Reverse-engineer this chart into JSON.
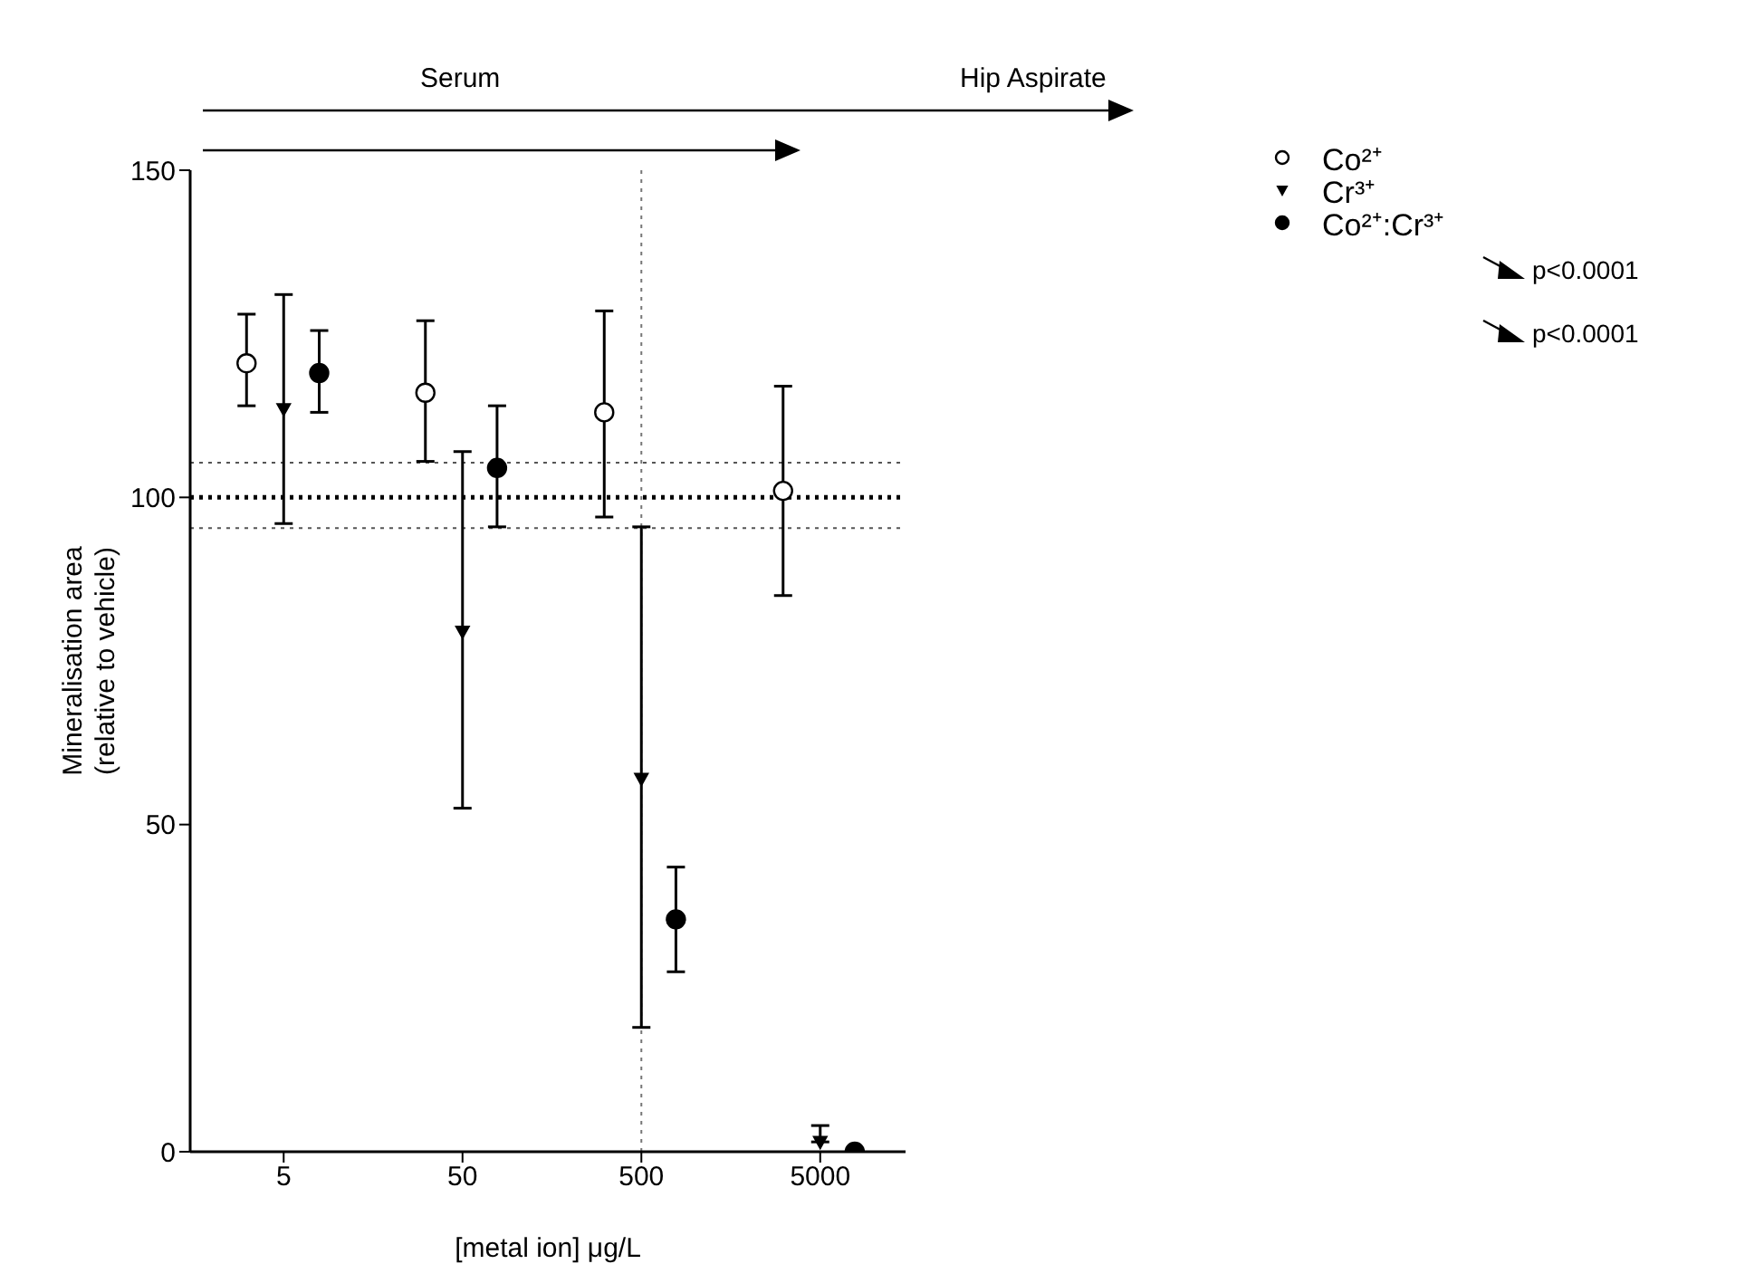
{
  "chart_data": {
    "type": "scatter",
    "xlabel": "[metal ion] μg/L",
    "ylabel": "Mineralisation area\n(relative to vehicle)",
    "log": "x",
    "xlim": [
      1.5,
      15000
    ],
    "xticks": [
      5,
      50,
      500,
      5000
    ],
    "ylim": [
      0,
      150
    ],
    "yticks": [
      0,
      50,
      100,
      150
    ],
    "grid": false,
    "legend": "right",
    "series": [
      {
        "name": "Co²⁺",
        "color": "#000000",
        "marker": "circle",
        "x": [
          3.1,
          31,
          310,
          3100
        ],
        "values": [
          120.5,
          116,
          113,
          101
        ],
        "errors": [
          [
            114,
            128
          ],
          [
            105.5,
            127
          ],
          [
            97,
            128.5
          ],
          [
            85,
            117
          ]
        ]
      },
      {
        "name": "Cr³⁺",
        "color": "#000000",
        "marker": "triangle",
        "x": [
          5,
          50,
          500,
          5000
        ],
        "values": [
          113.5,
          79.5,
          57,
          1.5
        ],
        "errors": [
          [
            96,
            131
          ],
          [
            52.5,
            107
          ],
          [
            19,
            95.5
          ],
          [
            1.5,
            4
          ]
        ]
      },
      {
        "name": "Co²⁺:Cr³⁺",
        "color": "#000000",
        "marker": "circle",
        "x": [
          7.9,
          78,
          780,
          7800
        ],
        "values": [
          119,
          104.5,
          35.5,
          0
        ],
        "errors": [
          [
            113,
            125.5
          ],
          [
            95.5,
            114
          ],
          [
            27.5,
            43.5
          ],
          null
        ]
      }
    ],
    "ref_lines": [
      {
        "axis": "y",
        "value": 100,
        "line_style": "dotted",
        "color": "#000000"
      },
      {
        "axis": "y",
        "value": 105.3,
        "line_style": "dotted",
        "color": "#555555"
      },
      {
        "axis": "y",
        "value": 95.3,
        "line_style": "dotted",
        "color": "#555555"
      },
      {
        "axis": "x",
        "value": 500,
        "line_style": "dotted",
        "color": "#777777"
      }
    ],
    "annotations": [
      "Serum",
      "Hip Aspirate",
      "p<0.0001",
      "p<0.0001"
    ]
  }
}
